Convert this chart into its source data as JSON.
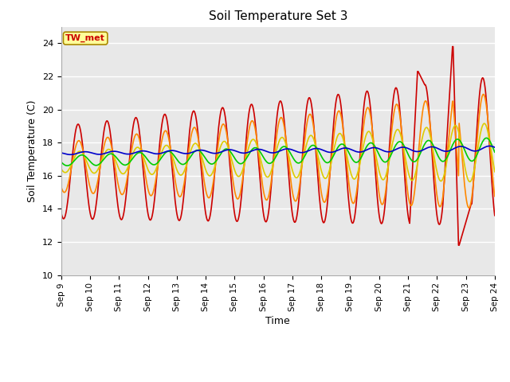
{
  "title": "Soil Temperature Set 3",
  "xlabel": "Time",
  "ylabel": "Soil Temperature (C)",
  "ylim": [
    10,
    25
  ],
  "background_color": "#e8e8e8",
  "plot_bg_color": "#e8e8e8",
  "series": {
    "SoilT3_02": {
      "color": "#cc0000",
      "lw": 1.2
    },
    "SoilT3_04": {
      "color": "#ff8800",
      "lw": 1.2
    },
    "SoilT3_08": {
      "color": "#ddcc00",
      "lw": 1.2
    },
    "SoilT3_16": {
      "color": "#00cc00",
      "lw": 1.2
    },
    "SoilT3_32": {
      "color": "#0000cc",
      "lw": 1.2
    }
  },
  "xtick_labels": [
    "Sep 9",
    "Sep 10",
    "Sep 11",
    "Sep 12",
    "Sep 13",
    "Sep 14",
    "Sep 15",
    "Sep 16",
    "Sep 17",
    "Sep 18",
    "Sep 19",
    "Sep 20",
    "Sep 21",
    "Sep 22",
    "Sep 23",
    "Sep 24"
  ],
  "ytick_vals": [
    10,
    12,
    14,
    16,
    18,
    20,
    22,
    24
  ],
  "annotation_text": "TW_met",
  "annotation_color": "#cc0000",
  "annotation_bg": "#ffff99",
  "annotation_border": "#aa8800",
  "figsize": [
    6.4,
    4.8
  ],
  "dpi": 100
}
